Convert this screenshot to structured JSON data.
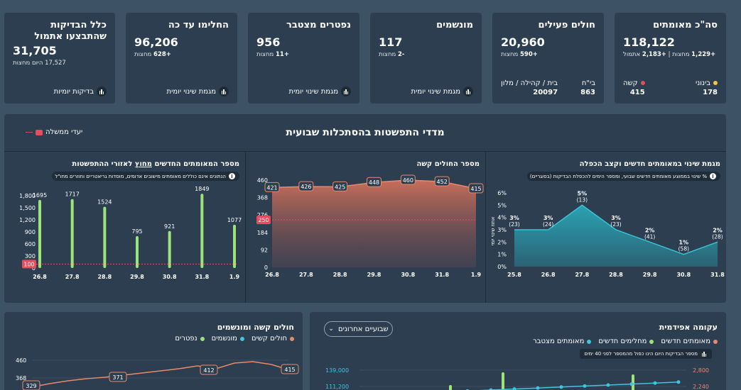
{
  "kpis": {
    "verified": {
      "title": "סה\"כ מאומתים",
      "value": "118,122",
      "sub_a": "+1,229",
      "sub_a_text": "מחצות |",
      "sub_b": "+2,183",
      "sub_b_text": "אתמול",
      "mild_label": "בינוני",
      "mild_value": "178",
      "severe_label": "קשה",
      "severe_value": "415"
    },
    "active": {
      "title": "חולים פעילים",
      "value": "20,960",
      "sub": "+590",
      "sub_text": "מחצות",
      "hosp_label": "בי\"ח",
      "hosp_value": "863",
      "home_label": "בית / קהילה / מלון",
      "home_value": "20097"
    },
    "ventilated": {
      "title": "מונשמים",
      "value": "117",
      "sub": "-2",
      "sub_text": "מחצות",
      "link": "מגמת שינוי יומית"
    },
    "deceased": {
      "title": "נפטרים מצטבר",
      "value": "956",
      "sub": "+11",
      "sub_text": "מחצות",
      "link": "מגמת שינוי יומית"
    },
    "recovered": {
      "title": "החלימו עד כה",
      "value": "96,206",
      "sub": "+628",
      "sub_text": "מחצות",
      "link": "מגמת שינוי יומית"
    },
    "tests": {
      "title": "כלל הבדיקות שהתבצעו אתמול",
      "value": "31,705",
      "sub": "17,527",
      "sub_text": "היום מחצות",
      "link": "בדיקות יומיות"
    }
  },
  "weekly": {
    "title": "מדדי התפשטות בהסתכלות שבועית",
    "gov_legend": "יעדי ממשלה",
    "trend_panel": {
      "title": "מגמת שינוי במאומתים חדשים וקצב הכפלה",
      "note": "% שינוי בממוצע מאומתים חדשים שבועי, ומספר הימים להכפלת הבדיקות (בסוגריים)",
      "ylabel": "אחוז שינוי יומי"
    },
    "severe_panel": {
      "title": "מספר החולים קשה"
    },
    "new_panel": {
      "title_prefix": "מספר המאומתים החדשים ",
      "title_underline": "מחוץ",
      "title_suffix": " לאזורי ההתפשטות",
      "note": "הנתונים אינם כוללים מאומתים מישובים אדומים, מוסדות גריאטריים וחוזרים מחו\"ל"
    }
  },
  "bottom_left": {
    "title": "חולים קשה ומונשמים",
    "legend": [
      {
        "label": "חולים קשים",
        "color": "#e8896a"
      },
      {
        "label": "מונשמים",
        "color": "#3ec6e0"
      },
      {
        "label": "נפטרים",
        "color": "#9de37a"
      }
    ],
    "y_ticks": [
      "460",
      "368"
    ]
  },
  "bottom_right": {
    "title": "עקומה אפידמית",
    "legend": [
      {
        "label": "מאומתים חדשים",
        "color": "#e8896a"
      },
      {
        "label": "מחלימים חדשים",
        "color": "#9de37a"
      },
      {
        "label": "מאומתים מצטבר",
        "color": "#3ec6e0"
      }
    ],
    "dropdown": "שבועיים אחרונים",
    "hint": "מספר הבדיקות היום הינו כפול מהמספר לפני 40 ימים",
    "left_ticks": [
      "139,000",
      "111,200"
    ],
    "right_ticks": [
      "2,800",
      "2,240"
    ]
  },
  "chart_data": [
    {
      "type": "area",
      "title": "מגמת שינוי במאומתים חדשים וקצב הכפלה",
      "ylabel": "אחוז שינוי יומי",
      "categories": [
        "25.8",
        "26.8",
        "27.8",
        "28.8",
        "29.8",
        "30.8",
        "31.8"
      ],
      "values": [
        3,
        3,
        5,
        3,
        2,
        1,
        2
      ],
      "value_labels": [
        "3%",
        "3%",
        "5%",
        "3%",
        "2%",
        "1%",
        "2%"
      ],
      "doubling_days": [
        "(23)",
        "(24)",
        "(13)",
        "(23)",
        "(41)",
        "(58)",
        "(28)"
      ],
      "y_ticks": [
        "0%",
        "1%",
        "2%",
        "3%",
        "4%",
        "5%",
        "6%"
      ],
      "ylim": [
        0,
        6
      ]
    },
    {
      "type": "area",
      "title": "מספר החולים קשה",
      "categories": [
        "26.8",
        "27.8",
        "28.8",
        "29.8",
        "30.8",
        "31.8",
        "1.9"
      ],
      "values": [
        421,
        426,
        425,
        448,
        460,
        452,
        415
      ],
      "y_ticks": [
        "0",
        "92",
        "184",
        "276",
        "368",
        "460"
      ],
      "ylim": [
        0,
        460
      ],
      "target": 250,
      "target_label": "250"
    },
    {
      "type": "bar",
      "title": "מספר המאומתים החדשים מחוץ לאזורי ההתפשטות",
      "categories": [
        "26.8",
        "27.8",
        "28.8",
        "29.8",
        "30.8",
        "31.8",
        "1.9"
      ],
      "values": [
        1695,
        1717,
        1524,
        795,
        921,
        1849,
        1077
      ],
      "y_ticks": [
        "0",
        "300",
        "600",
        "900",
        "1,200",
        "1,500",
        "1,800"
      ],
      "ylim": [
        0,
        1800
      ],
      "target": 100,
      "target_label": "100"
    },
    {
      "type": "line",
      "title": "חולים קשה ומונשמים",
      "values": [
        329,
        371,
        412,
        415
      ]
    }
  ]
}
